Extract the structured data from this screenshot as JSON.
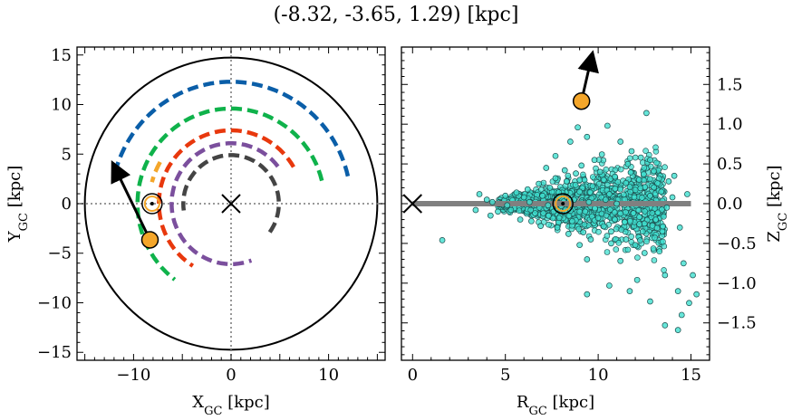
{
  "figure": {
    "title": "(-8.32, -3.65, 1.29) [kpc]"
  },
  "chart_data": [
    {
      "type": "line",
      "panel": "left",
      "xlabel": "X",
      "xlabel_sub": "GC",
      "xlabel_unit": " [kpc]",
      "ylabel": "Y",
      "ylabel_sub": "GC",
      "ylabel_unit": " [kpc]",
      "xlim": [
        -15.8,
        15.8
      ],
      "ylim": [
        -15.8,
        15.8
      ],
      "xticks": [
        -10,
        0,
        10
      ],
      "yticks": [
        -15,
        -10,
        -5,
        0,
        5,
        10,
        15
      ],
      "xtick_labels": [
        "−10",
        "0",
        "10"
      ],
      "ytick_labels": [
        "−15",
        "−10",
        "−5",
        "0",
        "5",
        "10",
        "15"
      ],
      "grid": false,
      "boundary_circle_radius": 15,
      "galactic_center": {
        "x": 0,
        "y": 0,
        "marker": "x"
      },
      "sun": {
        "x": -8.1,
        "y": 0.0,
        "marker": "circled-dot",
        "color": "#f4a62a"
      },
      "object": {
        "x": -8.32,
        "y": -3.65,
        "color": "#f4a62a"
      },
      "velocity_arrow": {
        "from": [
          -8.32,
          -3.65
        ],
        "to": [
          -11.8,
          3.4
        ]
      },
      "arms": [
        {
          "color": "#0a5ea8",
          "radius": 12.3,
          "theta_start_deg": 13,
          "theta_end_deg": 166
        },
        {
          "color": "#0fb24b",
          "radius": 9.6,
          "theta_start_deg": 14,
          "theta_end_deg": 233
        },
        {
          "color": "#f4a62a",
          "radius": 8.4,
          "theta_start_deg": 150,
          "theta_end_deg": 165
        },
        {
          "color": "#e8380d",
          "radius": 7.4,
          "theta_start_deg": 30,
          "theta_end_deg": 238
        },
        {
          "color": "#7b4f9d",
          "radius": 6.1,
          "theta_start_deg": 38,
          "theta_end_deg": 290
        },
        {
          "color": "#444444",
          "radius": 4.9,
          "theta_start_deg": -36,
          "theta_end_deg": 188
        }
      ]
    },
    {
      "type": "scatter",
      "panel": "right",
      "xlabel": "R",
      "xlabel_sub": "GC",
      "xlabel_unit": " [kpc]",
      "ylabel": "Z",
      "ylabel_sub": "GC",
      "ylabel_unit": " [kpc]",
      "xlim": [
        -0.6,
        16.0
      ],
      "ylim": [
        -1.97,
        1.97
      ],
      "xticks": [
        0,
        5,
        10,
        15
      ],
      "yticks": [
        -1.5,
        -1.0,
        -0.5,
        0.0,
        0.5,
        1.0,
        1.5
      ],
      "xtick_labels": [
        "0",
        "5",
        "10",
        "15"
      ],
      "ytick_labels": [
        "−1.5",
        "−1.0",
        "−0.5",
        "0.0",
        "0.5",
        "1.0",
        "1.5"
      ],
      "grid": false,
      "disk_line": {
        "x": [
          0,
          15
        ],
        "y": 0,
        "color": "#808080"
      },
      "galactic_center": {
        "x": 0,
        "y": 0,
        "marker": "x"
      },
      "sun": {
        "x": 8.1,
        "y": 0.0,
        "marker": "circled-dot",
        "color": "#f4a62a"
      },
      "object": {
        "x": 9.1,
        "y": 1.29,
        "color": "#f4a62a"
      },
      "velocity_arrow": {
        "from": [
          9.1,
          1.29
        ],
        "to": [
          9.6,
          1.8
        ]
      },
      "points_color": "#40e0d0",
      "points": [
        [
          1.6,
          -0.46
        ],
        [
          3.4,
          -0.08
        ],
        [
          4.3,
          0.02
        ],
        [
          5.8,
          -0.2
        ],
        [
          6.2,
          0.18
        ],
        [
          7.2,
          0.45
        ],
        [
          7.7,
          0.6
        ],
        [
          8.5,
          0.78
        ],
        [
          8.9,
          0.96
        ],
        [
          9.4,
          0.84
        ],
        [
          10.5,
          0.98
        ],
        [
          11.2,
          0.78
        ],
        [
          12.6,
          1.14
        ],
        [
          13.0,
          0.41
        ],
        [
          12.8,
          0.55
        ],
        [
          10.1,
          0.4
        ],
        [
          10.9,
          0.34
        ],
        [
          11.6,
          0.5
        ],
        [
          13.8,
          0.28
        ],
        [
          14.1,
          0.35
        ],
        [
          9.2,
          -0.36
        ],
        [
          10.7,
          -0.35
        ],
        [
          11.5,
          -0.45
        ],
        [
          12.4,
          -0.35
        ],
        [
          13.3,
          -0.6
        ],
        [
          9.4,
          -0.7
        ],
        [
          11.2,
          -0.72
        ],
        [
          12.5,
          -0.62
        ],
        [
          13.6,
          -0.9
        ],
        [
          14.3,
          -1.1
        ],
        [
          14.6,
          -0.75
        ],
        [
          15.1,
          -0.9
        ],
        [
          15.3,
          -1.14
        ],
        [
          10.6,
          -1.03
        ],
        [
          11.7,
          -1.1
        ],
        [
          12.8,
          -1.23
        ],
        [
          12.1,
          -0.96
        ],
        [
          14.9,
          -1.25
        ],
        [
          14.5,
          -1.4
        ],
        [
          13.6,
          -1.53
        ],
        [
          14.3,
          -1.59
        ],
        [
          9.4,
          -1.14
        ],
        [
          9.0,
          -0.52
        ],
        [
          8.8,
          0.38
        ],
        [
          7.6,
          -0.1
        ],
        [
          6.8,
          0.25
        ],
        [
          6.4,
          -0.22
        ],
        [
          5.0,
          0.1
        ],
        [
          4.6,
          -0.1
        ],
        [
          4.0,
          0.05
        ],
        [
          3.6,
          0.12
        ],
        [
          4.2,
          -0.15
        ],
        [
          5.3,
          -0.08
        ],
        [
          5.6,
          0.14
        ],
        [
          6.0,
          0.08
        ],
        [
          6.6,
          -0.12
        ],
        [
          7.0,
          0.1
        ],
        [
          7.4,
          0.2
        ],
        [
          7.9,
          -0.18
        ],
        [
          8.3,
          0.28
        ],
        [
          8.6,
          -0.22
        ],
        [
          9.0,
          0.15
        ],
        [
          9.3,
          -0.1
        ],
        [
          9.7,
          0.22
        ],
        [
          10.0,
          -0.18
        ],
        [
          10.3,
          0.3
        ],
        [
          10.6,
          0.12
        ],
        [
          10.9,
          -0.2
        ],
        [
          11.2,
          0.18
        ],
        [
          11.5,
          0.26
        ],
        [
          11.9,
          -0.12
        ],
        [
          12.2,
          0.3
        ],
        [
          12.5,
          -0.25
        ],
        [
          12.8,
          0.1
        ],
        [
          13.1,
          -0.2
        ],
        [
          13.4,
          0.15
        ],
        [
          13.7,
          -0.05
        ],
        [
          14.0,
          0.08
        ],
        [
          14.4,
          -0.3
        ],
        [
          14.8,
          0.12
        ],
        [
          9.8,
          0.55
        ],
        [
          10.2,
          0.62
        ],
        [
          9.1,
          0.48
        ],
        [
          8.2,
          0.42
        ],
        [
          7.7,
          0.32
        ],
        [
          11.8,
          0.66
        ],
        [
          12.3,
          0.58
        ],
        [
          10.7,
          -0.5
        ],
        [
          12.0,
          -0.52
        ],
        [
          9.6,
          -0.45
        ],
        [
          8.4,
          -0.38
        ],
        [
          7.8,
          -0.3
        ],
        [
          6.9,
          -0.28
        ],
        [
          10.4,
          0.05
        ],
        [
          11.0,
          0.0
        ],
        [
          9.5,
          0.02
        ],
        [
          8.7,
          0.05
        ],
        [
          7.3,
          -0.02
        ],
        [
          6.3,
          0.02
        ],
        [
          5.1,
          -0.02
        ]
      ]
    }
  ]
}
